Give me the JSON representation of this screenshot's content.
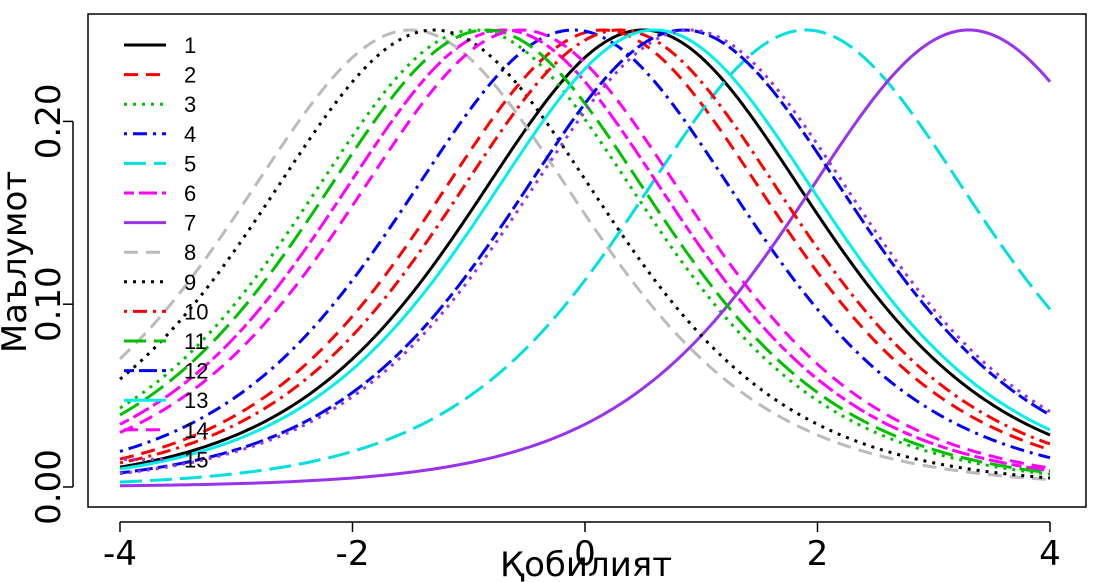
{
  "chart_data": {
    "type": "line",
    "title": "",
    "xlabel": "Қобилият",
    "ylabel": "Маълумот",
    "xlim": [
      -4,
      4
    ],
    "ylim": [
      0,
      0.25
    ],
    "x_ticks": [
      -4,
      -2,
      0,
      2,
      4
    ],
    "x_tick_labels": [
      "-4",
      "-2",
      "0",
      "2",
      "4"
    ],
    "y_ticks": [
      0,
      0.1,
      0.2
    ],
    "y_tick_labels": [
      "0.00",
      "0.10",
      "0.20"
    ],
    "grid": false,
    "legend_position": "top-left",
    "curve_model": "Information I(θ) = P(1-P), P = 1/(1+exp(-a(θ-b)))",
    "series": [
      {
        "name": "1",
        "a": 1.0,
        "b": 0.5,
        "color": "#000000",
        "dash": "solid"
      },
      {
        "name": "2",
        "a": 1.0,
        "b": 0.15,
        "color": "#ff0000",
        "dash": "dashed"
      },
      {
        "name": "3",
        "a": 1.0,
        "b": -0.95,
        "color": "#00c000",
        "dash": "dotted"
      },
      {
        "name": "4",
        "a": 1.0,
        "b": -0.1,
        "color": "#0000ff",
        "dash": "dotdash"
      },
      {
        "name": "5",
        "a": 1.0,
        "b": 1.9,
        "color": "#00e0e0",
        "dash": "longdash"
      },
      {
        "name": "6",
        "a": 1.0,
        "b": -0.7,
        "color": "#ff00ff",
        "dash": "twodash"
      },
      {
        "name": "7",
        "a": 1.0,
        "b": 3.3,
        "color": "#9933ee",
        "dash": "solid"
      },
      {
        "name": "8",
        "a": 1.0,
        "b": -1.5,
        "color": "#bbbbbb",
        "dash": "dashed"
      },
      {
        "name": "9",
        "a": 1.0,
        "b": -1.3,
        "color": "#000000",
        "dash": "dotted"
      },
      {
        "name": "10",
        "a": 1.0,
        "b": 0.3,
        "color": "#ff0000",
        "dash": "dotdash"
      },
      {
        "name": "11",
        "a": 1.0,
        "b": -0.85,
        "color": "#00c000",
        "dash": "longdash"
      },
      {
        "name": "12",
        "a": 1.0,
        "b": 0.85,
        "color": "#0000ff",
        "dash": "twodash"
      },
      {
        "name": "13",
        "a": 1.0,
        "b": 0.6,
        "color": "#00f0f0",
        "dash": "solid"
      },
      {
        "name": "14",
        "a": 1.0,
        "b": -0.55,
        "color": "#ff00ff",
        "dash": "dashed"
      },
      {
        "name": "15",
        "a": 1.0,
        "b": 0.9,
        "color": "#9933ee",
        "dash": "dotted"
      }
    ]
  }
}
